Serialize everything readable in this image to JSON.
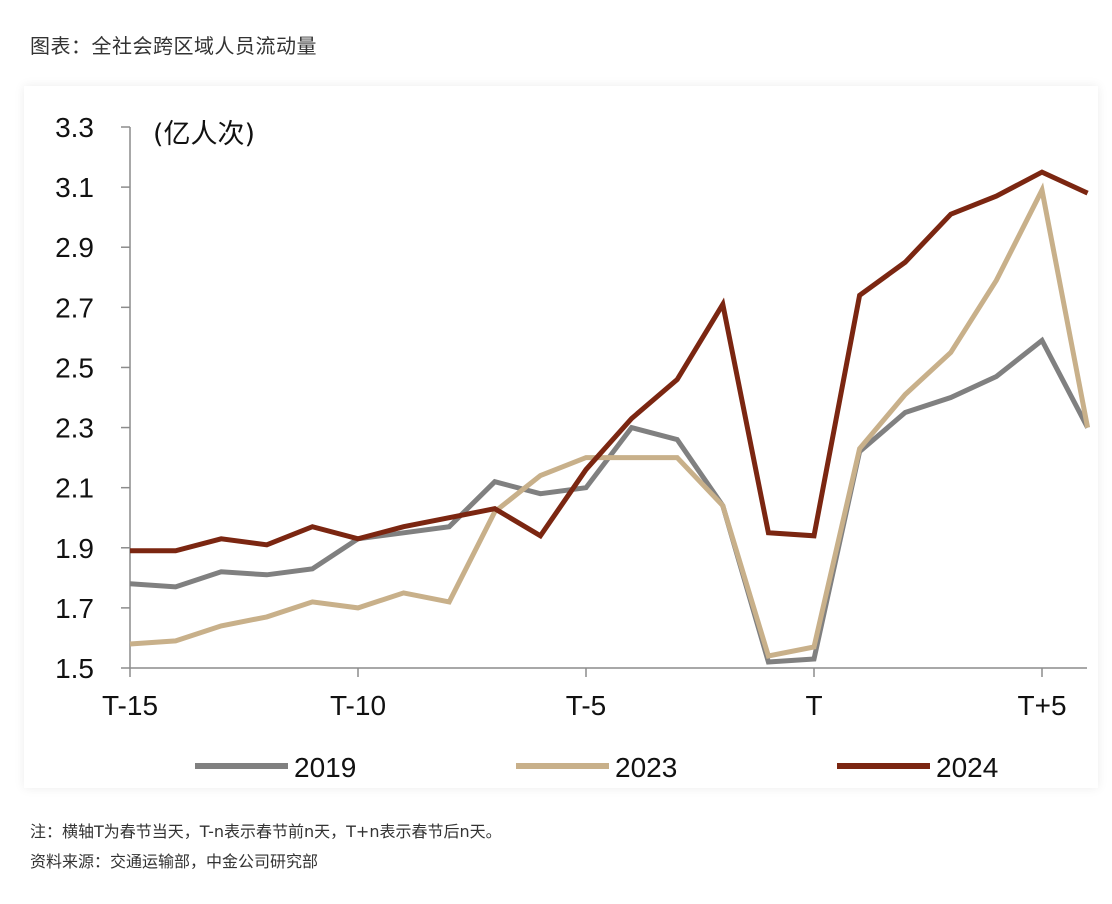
{
  "title": "图表：全社会跨区域人员流动量",
  "footnote": "注：横轴T为春节当天，T-n表示春节前n天，T+n表示春节后n天。",
  "source": "资料来源：交通运输部，中金公司研究部",
  "chart_data": {
    "type": "line",
    "unit_label": "(亿人次)",
    "x": [
      -15,
      -14,
      -13,
      -12,
      -11,
      -10,
      -9,
      -8,
      -7,
      -6,
      -5,
      -4,
      -3,
      -2,
      -1,
      0,
      1,
      2,
      3,
      4,
      5,
      6
    ],
    "x_tick_values": [
      -15,
      -10,
      -5,
      0,
      5
    ],
    "x_tick_labels": [
      "T-15",
      "T-10",
      "T-5",
      "T",
      "T+5"
    ],
    "ylim": [
      1.5,
      3.3
    ],
    "y_ticks": [
      "3.3",
      "3.1",
      "2.9",
      "2.7",
      "2.5",
      "2.3",
      "2.1",
      "1.9",
      "1.7",
      "1.5"
    ],
    "grid": false,
    "legend_position": "bottom",
    "series": [
      {
        "name": "2019",
        "color": "#808080",
        "values": [
          1.78,
          1.77,
          1.82,
          1.81,
          1.83,
          1.93,
          1.95,
          1.97,
          2.12,
          2.08,
          2.1,
          2.3,
          2.26,
          2.04,
          1.52,
          1.53,
          2.22,
          2.35,
          2.4,
          2.47,
          2.59,
          2.3
        ]
      },
      {
        "name": "2023",
        "color": "#C8B08A",
        "values": [
          1.58,
          1.59,
          1.64,
          1.67,
          1.72,
          1.7,
          1.75,
          1.72,
          2.02,
          2.14,
          2.2,
          2.2,
          2.2,
          2.04,
          1.54,
          1.57,
          2.23,
          2.41,
          2.55,
          2.79,
          3.09,
          2.3
        ]
      },
      {
        "name": "2024",
        "color": "#7B2611",
        "values": [
          1.89,
          1.89,
          1.93,
          1.91,
          1.97,
          1.93,
          1.97,
          2.0,
          2.03,
          1.94,
          2.16,
          2.33,
          2.46,
          2.71,
          1.95,
          1.94,
          2.74,
          2.85,
          3.01,
          3.07,
          3.15,
          3.08
        ]
      }
    ]
  }
}
